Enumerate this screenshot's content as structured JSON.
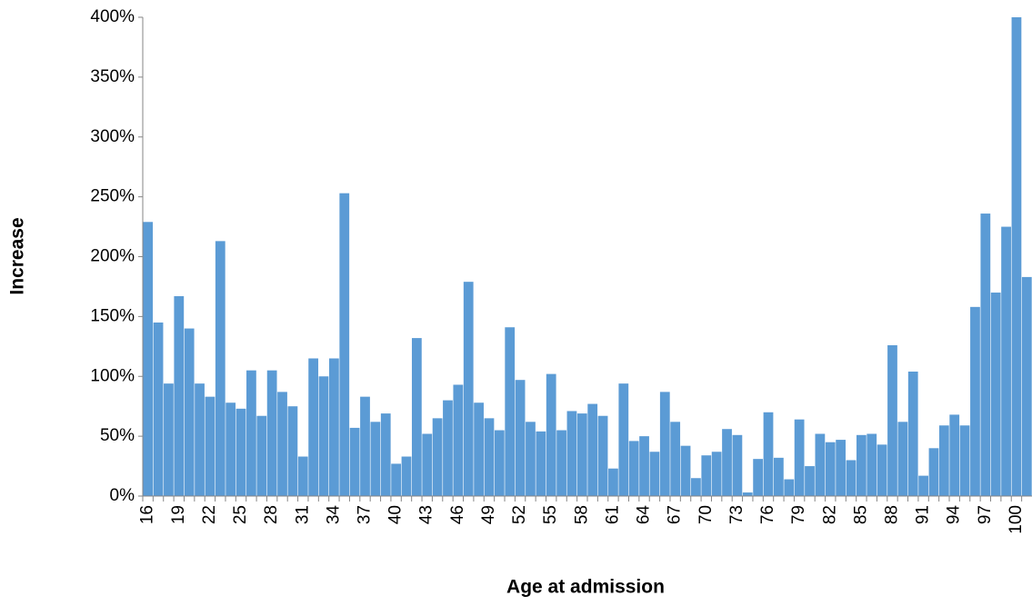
{
  "chart_data": {
    "type": "bar",
    "x_label": "Age at admission",
    "y_label": "Increase",
    "categories": [
      "16",
      null,
      null,
      "19",
      null,
      null,
      "22",
      null,
      null,
      "25",
      null,
      null,
      "28",
      null,
      null,
      "31",
      null,
      null,
      "34",
      null,
      null,
      "37",
      null,
      null,
      "40",
      null,
      null,
      "43",
      null,
      null,
      "46",
      null,
      null,
      "49",
      null,
      null,
      "52",
      null,
      null,
      "55",
      null,
      null,
      "58",
      null,
      null,
      "61",
      null,
      null,
      "64",
      null,
      null,
      "67",
      null,
      null,
      "70",
      null,
      null,
      "73",
      null,
      null,
      "76",
      null,
      null,
      "79",
      null,
      null,
      "82",
      null,
      null,
      "85",
      null,
      null,
      "88",
      null,
      null,
      "91",
      null,
      null,
      "94",
      null,
      null,
      "97",
      null,
      null,
      "100",
      null
    ],
    "values": [
      229,
      145,
      94,
      167,
      140,
      94,
      83,
      213,
      78,
      73,
      105,
      67,
      105,
      87,
      75,
      33,
      115,
      100,
      115,
      253,
      57,
      83,
      62,
      69,
      27,
      33,
      132,
      52,
      65,
      80,
      93,
      179,
      78,
      65,
      55,
      141,
      97,
      62,
      54,
      102,
      55,
      71,
      69,
      77,
      67,
      23,
      94,
      46,
      50,
      37,
      87,
      62,
      42,
      15,
      34,
      37,
      56,
      51,
      3,
      31,
      70,
      32,
      14,
      64,
      25,
      52,
      45,
      47,
      30,
      51,
      52,
      43,
      126,
      62,
      104,
      17,
      40,
      59,
      68,
      59,
      158,
      236,
      170,
      225,
      400,
      183
    ],
    "color": "#5b9bd5",
    "ylim": [
      0,
      400
    ],
    "yticks": [
      {
        "value": 0,
        "label": "0%"
      },
      {
        "value": 50,
        "label": "50%"
      },
      {
        "value": 100,
        "label": "100%"
      },
      {
        "value": 150,
        "label": "150%"
      },
      {
        "value": 200,
        "label": "200%"
      },
      {
        "value": 250,
        "label": "250%"
      },
      {
        "value": 300,
        "label": "300%"
      },
      {
        "value": 350,
        "label": "350%"
      },
      {
        "value": 400,
        "label": "400%"
      }
    ],
    "grid": false
  }
}
